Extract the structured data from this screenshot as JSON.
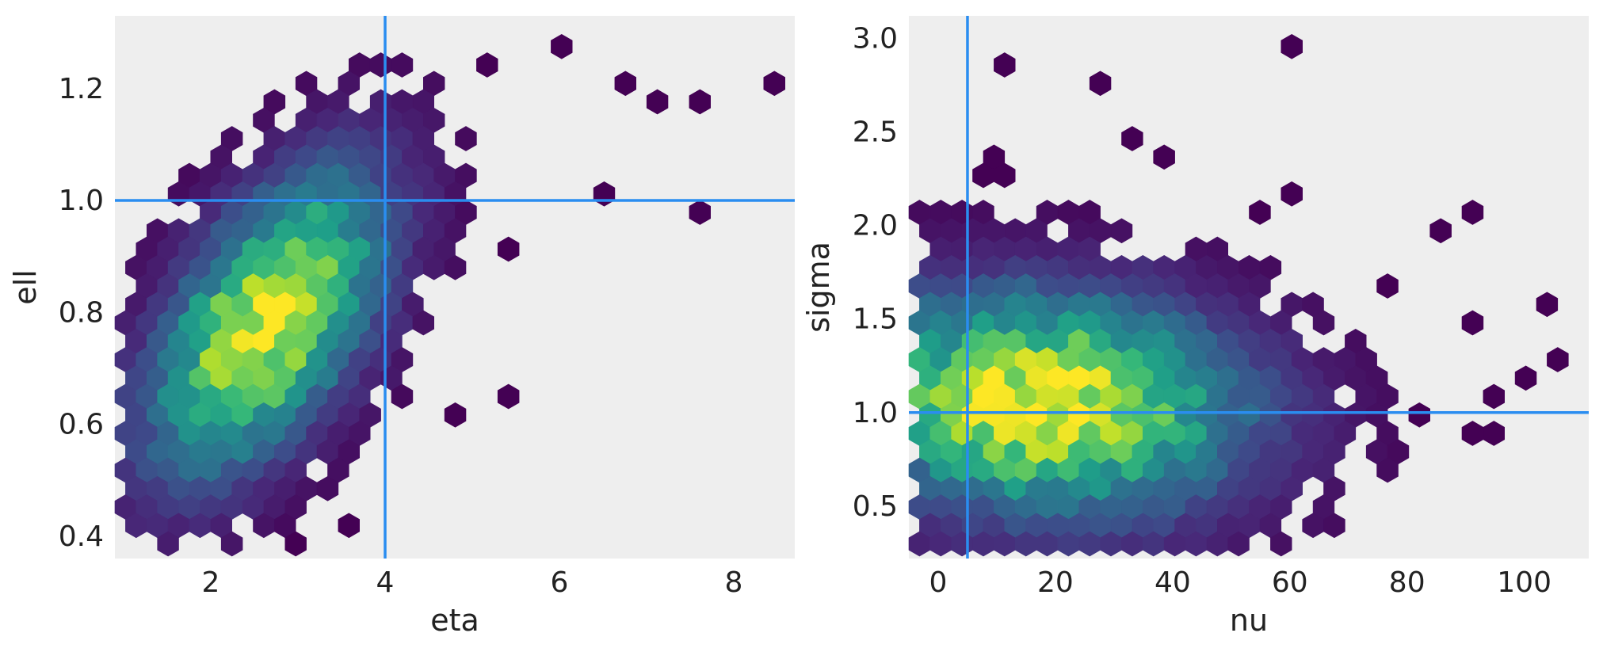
{
  "chart_data": [
    {
      "type": "hexbin",
      "xlabel": "eta",
      "ylabel": "ell",
      "xlim": [
        0.9,
        8.7
      ],
      "ylim": [
        0.36,
        1.33
      ],
      "xticks": [
        2,
        4,
        6,
        8
      ],
      "xtick_labels": [
        "2",
        "4",
        "6",
        "8"
      ],
      "yticks": [
        0.4,
        0.6,
        0.8,
        1.0,
        1.2
      ],
      "ytick_labels": [
        "0.4",
        "0.6",
        "0.8",
        "1.0",
        "1.2"
      ],
      "reference_lines": {
        "x": 4,
        "y": 1.0
      },
      "colormap": "viridis",
      "grid": false,
      "cluster": {
        "cx": 2.65,
        "cy": 0.78,
        "sx": 0.85,
        "sy": 0.17,
        "rho": 0.55
      },
      "outliers": [
        [
          6.1,
          1.28
        ],
        [
          5.1,
          1.25
        ],
        [
          3.95,
          1.25
        ],
        [
          6.65,
          1.22
        ],
        [
          7.15,
          1.18
        ],
        [
          7.65,
          1.18
        ],
        [
          8.35,
          1.22
        ],
        [
          7.55,
          0.97
        ],
        [
          6.5,
          1.0
        ],
        [
          3.0,
          0.4
        ],
        [
          3.6,
          0.43
        ],
        [
          5.5,
          0.9
        ],
        [
          4.8,
          0.62
        ],
        [
          5.3,
          0.65
        ]
      ]
    },
    {
      "type": "hexbin",
      "xlabel": "nu",
      "ylabel": "sigma",
      "xlim": [
        -5,
        111
      ],
      "ylim": [
        0.22,
        3.12
      ],
      "xticks": [
        0,
        20,
        40,
        60,
        80,
        100
      ],
      "xtick_labels": [
        "0",
        "20",
        "40",
        "60",
        "80",
        "100"
      ],
      "yticks": [
        0.5,
        1.0,
        1.5,
        2.0,
        2.5,
        3.0
      ],
      "ytick_labels": [
        "0.5",
        "1.0",
        "1.5",
        "2.0",
        "2.5",
        "3.0"
      ],
      "reference_lines": {
        "x": 5,
        "y": 1.0
      },
      "colormap": "viridis",
      "grid": false,
      "cluster": {
        "cx": 18,
        "cy": 1.05,
        "sx": 22,
        "sy": 0.38,
        "rho": -0.1
      },
      "outliers": [
        [
          60,
          2.98
        ],
        [
          11,
          2.88
        ],
        [
          28,
          2.7
        ],
        [
          34,
          2.42
        ],
        [
          40,
          2.33
        ],
        [
          62,
          2.15
        ],
        [
          56,
          2.05
        ],
        [
          87,
          1.95
        ],
        [
          93,
          2.05
        ],
        [
          77,
          1.68
        ],
        [
          104,
          1.58
        ],
        [
          93,
          1.48
        ],
        [
          96,
          1.12
        ],
        [
          100,
          1.2
        ],
        [
          105,
          1.3
        ],
        [
          90,
          0.93
        ],
        [
          95,
          0.93
        ],
        [
          81,
          0.95
        ],
        [
          8,
          2.4
        ],
        [
          10,
          2.3
        ],
        [
          8,
          2.22
        ]
      ]
    }
  ]
}
